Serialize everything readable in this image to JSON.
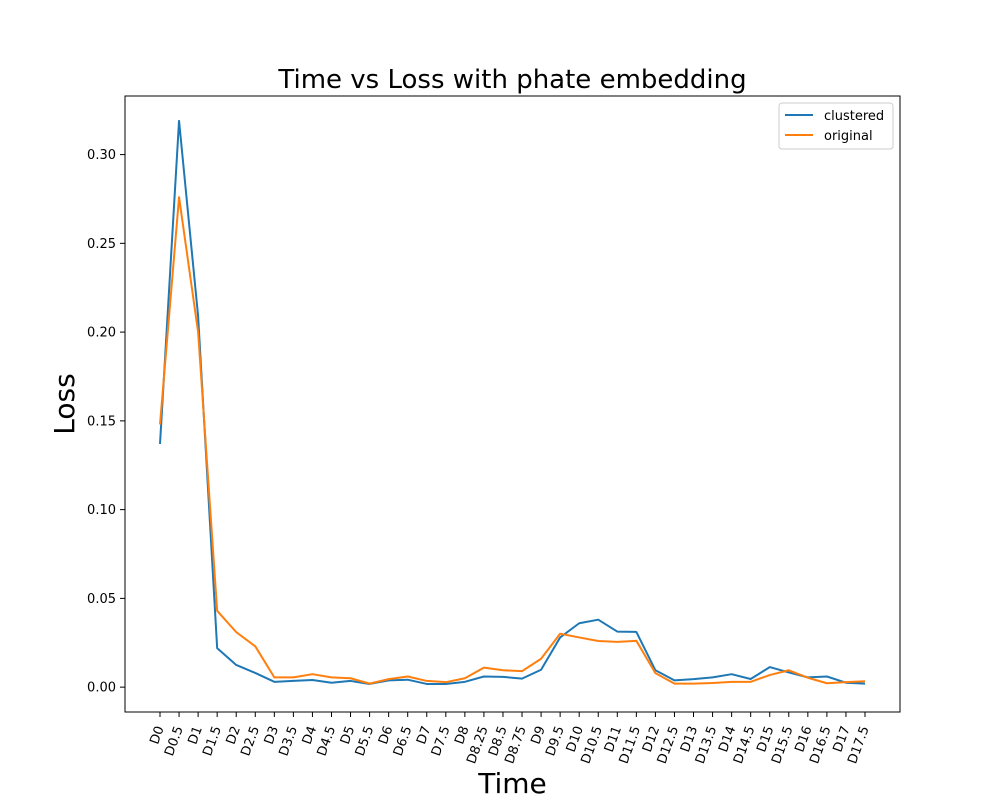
{
  "chart_data": {
    "type": "line",
    "title": "Time vs Loss with phate embedding",
    "xlabel": "Time",
    "ylabel": "Loss",
    "categories": [
      "D0",
      "D0.5",
      "D1",
      "D1.5",
      "D2",
      "D2.5",
      "D3",
      "D3.5",
      "D4",
      "D4.5",
      "D5",
      "D5.5",
      "D6",
      "D6.5",
      "D7",
      "D7.5",
      "D8",
      "D8.25",
      "D8.5",
      "D8.75",
      "D9",
      "D9.5",
      "D10",
      "D10.5",
      "D11",
      "D11.5",
      "D12",
      "D12.5",
      "D13",
      "D13.5",
      "D14",
      "D14.5",
      "D15",
      "D15.5",
      "D16",
      "D16.5",
      "D17",
      "D17.5"
    ],
    "ylim": [
      -0.014,
      0.333
    ],
    "yticks": [
      0.0,
      0.05,
      0.1,
      0.15,
      0.2,
      0.25,
      0.3
    ],
    "ytick_labels": [
      "0.00",
      "0.05",
      "0.10",
      "0.15",
      "0.20",
      "0.25",
      "0.30"
    ],
    "grid": false,
    "legend": "top-right",
    "series": [
      {
        "name": "clustered",
        "color": "#1f77b4",
        "values": [
          0.137,
          0.319,
          0.209,
          0.022,
          0.0125,
          0.008,
          0.003,
          0.0035,
          0.004,
          0.0025,
          0.0035,
          0.0018,
          0.0038,
          0.0042,
          0.0018,
          0.0018,
          0.003,
          0.006,
          0.0058,
          0.0048,
          0.0098,
          0.028,
          0.036,
          0.038,
          0.0313,
          0.0311,
          0.0095,
          0.0038,
          0.0045,
          0.0055,
          0.0073,
          0.0046,
          0.0113,
          0.0083,
          0.0055,
          0.006,
          0.0025,
          0.002
        ]
      },
      {
        "name": "original",
        "color": "#ff7f0e",
        "values": [
          0.148,
          0.276,
          0.2,
          0.043,
          0.031,
          0.023,
          0.0055,
          0.0055,
          0.0073,
          0.0055,
          0.005,
          0.002,
          0.0045,
          0.006,
          0.0035,
          0.0028,
          0.005,
          0.011,
          0.0095,
          0.009,
          0.016,
          0.0301,
          0.028,
          0.026,
          0.0255,
          0.0261,
          0.0079,
          0.002,
          0.002,
          0.0023,
          0.003,
          0.003,
          0.0068,
          0.0095,
          0.0053,
          0.0022,
          0.0028,
          0.0033
        ]
      }
    ]
  }
}
